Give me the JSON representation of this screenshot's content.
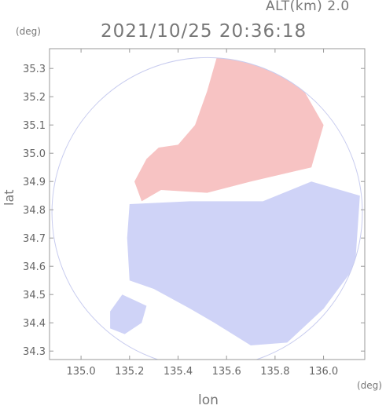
{
  "header": {
    "alt_label": "ALT(km) 2.0",
    "timestamp": "2021/10/25 20:36:18",
    "lat_unit": "(deg)",
    "lon_unit": "(deg)"
  },
  "chart_data": {
    "type": "heatmap",
    "title": "2021/10/25 20:36:18",
    "xlabel": "lon",
    "ylabel": "lat",
    "xlim": [
      134.87,
      136.17
    ],
    "ylim": [
      34.27,
      35.37
    ],
    "xticks": [
      135.0,
      135.2,
      135.4,
      135.6,
      135.8,
      136.0
    ],
    "yticks": [
      34.3,
      34.4,
      34.5,
      34.6,
      34.7,
      34.8,
      34.9,
      35.0,
      35.1,
      35.2,
      35.3
    ],
    "xtick_labels": [
      "135.0",
      "135.2",
      "135.4",
      "135.6",
      "135.8",
      "136.0"
    ],
    "ytick_labels": [
      "34.3",
      "34.4",
      "34.5",
      "34.6",
      "34.7",
      "34.8",
      "34.9",
      "35.0",
      "35.1",
      "35.2",
      "35.3"
    ],
    "radar_center": [
      135.52,
      34.79
    ],
    "radar_range_deg": 0.64,
    "colors": {
      "positive": "#f7c3c3",
      "positive_light": "#fbe3e3",
      "negative": "#cfd3f7",
      "negative_light": "#e6e8fb",
      "neutral": "#ffffff"
    },
    "regions": [
      {
        "name": "positive-north",
        "sign": "positive",
        "polygon": [
          [
            135.33,
            34.87
          ],
          [
            135.52,
            34.86
          ],
          [
            135.7,
            34.9
          ],
          [
            135.95,
            34.95
          ],
          [
            136.0,
            35.1
          ],
          [
            135.9,
            35.25
          ],
          [
            135.72,
            35.37
          ],
          [
            135.57,
            35.37
          ],
          [
            135.52,
            35.22
          ],
          [
            135.47,
            35.1
          ],
          [
            135.4,
            35.03
          ],
          [
            135.32,
            35.02
          ],
          [
            135.27,
            34.98
          ],
          [
            135.22,
            34.9
          ],
          [
            135.25,
            34.83
          ]
        ]
      },
      {
        "name": "negative-southeast",
        "sign": "negative",
        "polygon": [
          [
            135.2,
            34.82
          ],
          [
            135.45,
            34.83
          ],
          [
            135.75,
            34.83
          ],
          [
            135.95,
            34.9
          ],
          [
            136.15,
            34.85
          ],
          [
            136.13,
            34.6
          ],
          [
            136.0,
            34.45
          ],
          [
            135.85,
            34.33
          ],
          [
            135.7,
            34.32
          ],
          [
            135.55,
            34.4
          ],
          [
            135.45,
            34.45
          ],
          [
            135.3,
            34.52
          ],
          [
            135.2,
            34.55
          ],
          [
            135.19,
            34.7
          ]
        ]
      },
      {
        "name": "negative-southwest",
        "sign": "negative",
        "polygon": [
          [
            135.17,
            34.5
          ],
          [
            135.22,
            34.48
          ],
          [
            135.27,
            34.46
          ],
          [
            135.25,
            34.4
          ],
          [
            135.18,
            34.36
          ],
          [
            135.12,
            34.38
          ],
          [
            135.12,
            34.44
          ]
        ]
      }
    ]
  }
}
